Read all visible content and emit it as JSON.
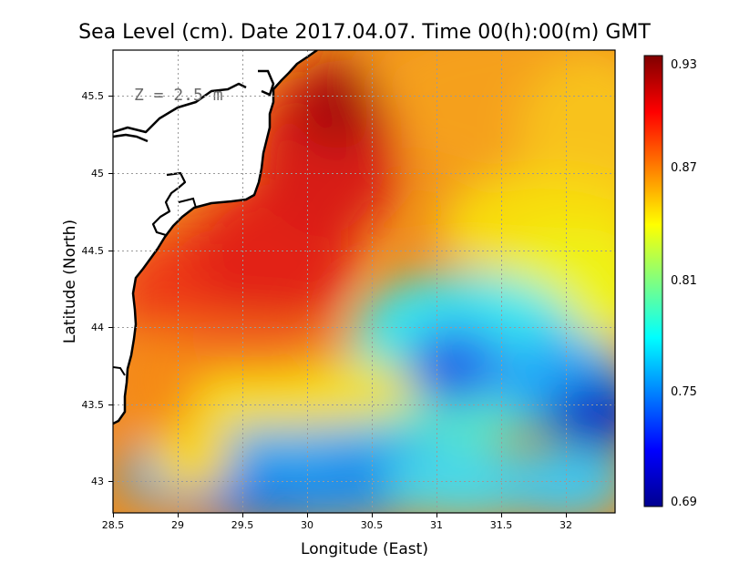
{
  "title": "Sea Level (cm). Date 2017.04.07. Time 00(h):00(m) GMT",
  "depth_label": "Z = 2.5 m",
  "chart_data": {
    "type": "heatmap",
    "title": "Sea Level (cm). Date 2017.04.07. Time 00(h):00(m) GMT",
    "xlabel": "Longitude (East)",
    "ylabel": "Latitude (North)",
    "xlim": [
      28.5,
      32.4
    ],
    "ylim": [
      42.8,
      45.8
    ],
    "x_ticks": [
      28.5,
      29,
      29.5,
      30,
      30.5,
      31,
      31.5,
      32
    ],
    "x_tick_labels": [
      "28.5",
      "29",
      "29.5",
      "30",
      "30.5",
      "31",
      "31.5",
      "32"
    ],
    "y_ticks": [
      43,
      43.5,
      44,
      44.5,
      45,
      45.5
    ],
    "y_tick_labels": [
      "43",
      "43.5",
      "44",
      "44.5",
      "45",
      "45.5"
    ],
    "grid": true,
    "colorbar": {
      "min": 0.69,
      "max": 0.93,
      "ticks": [
        "0.93",
        "0.87",
        "0.81",
        "0.75",
        "0.69"
      ],
      "colormap": "jet"
    },
    "features": [
      {
        "description": "maximum near coast",
        "lon": 30.2,
        "lat": 45.45,
        "value": 0.93
      },
      {
        "description": "high band along shelf",
        "lon": 29.6,
        "lat": 44.6,
        "value": 0.91
      },
      {
        "description": "local minimum",
        "lon": 31.1,
        "lat": 43.7,
        "value": 0.74
      },
      {
        "description": "minimum east",
        "lon": 32.3,
        "lat": 43.4,
        "value": 0.7
      },
      {
        "description": "low south-west",
        "lon": 29.4,
        "lat": 42.9,
        "value": 0.75
      }
    ]
  },
  "colors": {
    "land": "#ffffff",
    "coastline": "#000000",
    "grid": "#9a9a9a"
  }
}
